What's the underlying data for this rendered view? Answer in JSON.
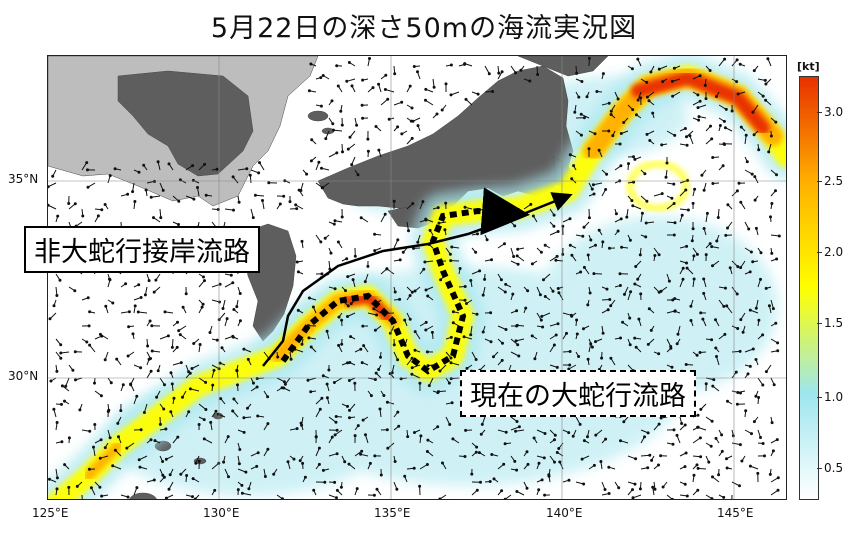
{
  "title": "5月22日の深さ50mの海流実況図",
  "labels": {
    "straight_path": "非大蛇行接岸流路",
    "current_path": "現在の大蛇行流路"
  },
  "axes": {
    "lon_ticks": [
      "125°E",
      "130°E",
      "135°E",
      "140°E",
      "145°E"
    ],
    "lat_ticks": [
      "35°N",
      "30°N"
    ]
  },
  "colorbar": {
    "unit": "[kt]",
    "ticks": [
      "3.0",
      "2.5",
      "2.0",
      "1.5",
      "1.0",
      "0.5"
    ],
    "colors": [
      "#ffffff",
      "#9ee6ee",
      "#ffff00",
      "#ffb000",
      "#e83000"
    ]
  }
}
